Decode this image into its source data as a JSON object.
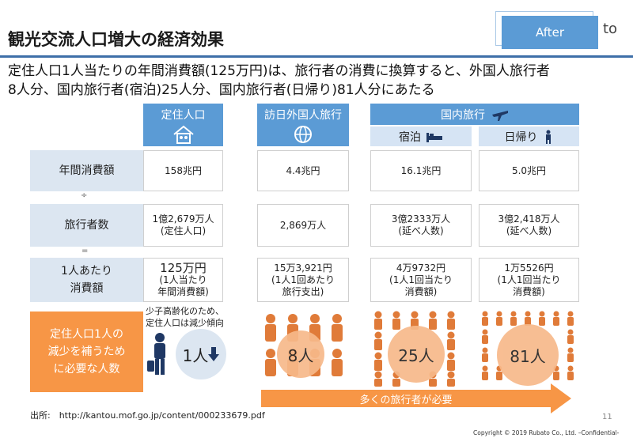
{
  "header": {
    "title": "観光交流人口増大の経済効果",
    "after_label": "After",
    "after_tail": "to",
    "lead_line1": "定住人口1人当たりの年間消費額(125万円)は、旅行者の消費に換算すると、外国人旅行者",
    "lead_line2": "8人分、国内旅行者(宿泊)25人分、国内旅行者(日帰り)81人分にあたる"
  },
  "columns": {
    "resident": "定住人口",
    "foreign": "訪日外国人旅行",
    "domestic": "国内旅行",
    "overnight": "宿泊",
    "daytrip": "日帰り"
  },
  "rows": {
    "annual": "年間消費額",
    "divide": "÷",
    "travelers": "旅行者数",
    "equals": "=",
    "per_person_1": "1人あたり",
    "per_person_2": "消費額"
  },
  "annual_values": {
    "resident": "158兆円",
    "foreign": "4.4兆円",
    "overnight": "16.1兆円",
    "daytrip": "5.0兆円"
  },
  "traveler_values": {
    "resident": "1億2,679万人",
    "resident_note": "(定住人口)",
    "foreign": "2,869万人",
    "overnight": "3億2333万人",
    "overnight_note": "(延べ人数)",
    "daytrip": "3億2,418万人",
    "daytrip_note": "(延べ人数)"
  },
  "per_person_values": {
    "resident": "125万円",
    "resident_n1": "(1人当たり",
    "resident_n2": "年間消費額)",
    "foreign": "15万3,921円",
    "foreign_n1": "(1人1回あたり",
    "foreign_n2": "旅行支出)",
    "overnight": "4万9732円",
    "overnight_n1": "(1人1回当たり",
    "overnight_n2": "消費額)",
    "daytrip": "1万5526円",
    "daytrip_n1": "(1人1回当たり",
    "daytrip_n2": "消費額)"
  },
  "bottom": {
    "orange_1": "定住人口1人の",
    "orange_2": "減少を補うため",
    "orange_3": "に必要な人数",
    "note_1": "少子高齢化のため、",
    "note_2": "定住人口は減少傾向",
    "resident_count": "1人",
    "foreign_count": "8人",
    "overnight_count": "25人",
    "daytrip_count": "81人",
    "arrow_label": "多くの旅行者が必要"
  },
  "footer": {
    "source": "出所:　http://kantou.mof.go.jp/content/000233679.pdf",
    "page": "11",
    "copyright": "Copyright © 2019 Rubato Co., Ltd. –Confidential-"
  },
  "colors": {
    "accent": "#5b9bd5",
    "orange": "#f79646",
    "rule": "#3e6fa8",
    "peach": "#f7b98a"
  },
  "icons": [
    "house-icon",
    "globe-icon",
    "plane-icon",
    "bed-icon",
    "walker-icon",
    "traveler-icon",
    "down-arrow-icon",
    "person-icon"
  ]
}
